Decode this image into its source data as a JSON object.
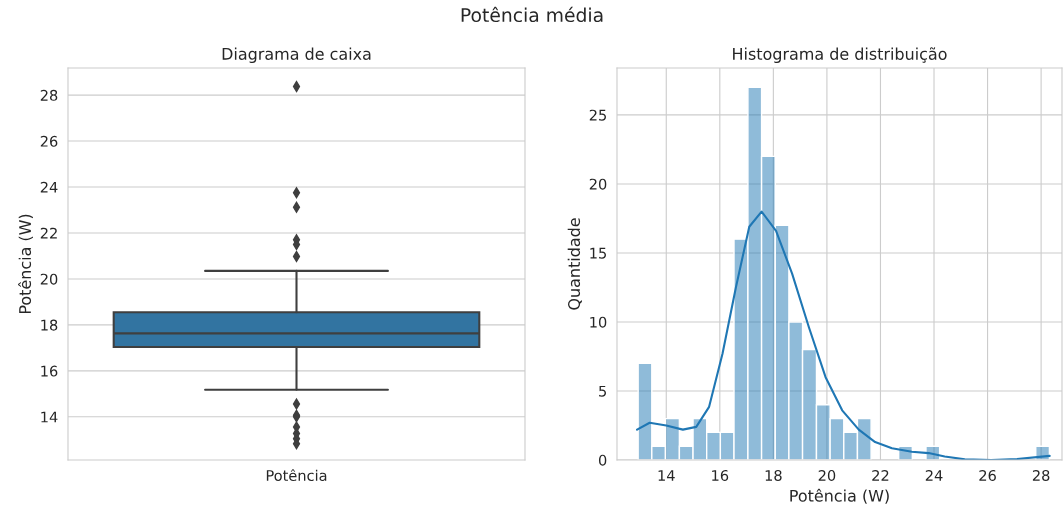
{
  "chart_data": [
    {
      "type": "box",
      "title": "Diagrama de caixa",
      "ylabel": "Potência (W)",
      "annotations": [
        "Potência média"
      ],
      "categories": [
        "Potência"
      ],
      "color": "#3274a1",
      "boxes": [
        {
          "low": 15.18,
          "q1": 17.04,
          "median": 17.63,
          "q3": 18.55,
          "high": 20.35,
          "outliers": [
            28.37,
            23.75,
            23.12,
            21.7,
            21.5,
            20.98,
            14.56,
            14.07,
            14.0,
            13.56,
            13.27,
            13.05,
            12.83
          ]
        }
      ],
      "ylim": [
        12.12,
        29.18
      ],
      "yticks": [
        14,
        16,
        18,
        20,
        22,
        24,
        26,
        28
      ],
      "grid": "y"
    },
    {
      "type": "histogram",
      "title": "Histograma de distribuição",
      "xlabel": "Potência (W)",
      "ylabel": "Quantidade",
      "color": "#1f77b4",
      "bins": [
        12.95,
        13.46,
        13.97,
        14.49,
        15.0,
        15.51,
        16.02,
        16.53,
        17.05,
        17.56,
        18.07,
        18.58,
        19.09,
        19.61,
        20.12,
        20.63,
        21.14,
        21.65,
        22.17,
        22.68,
        23.19,
        23.7,
        24.21,
        24.73,
        25.24,
        25.75,
        26.26,
        26.77,
        27.29,
        27.8,
        28.31
      ],
      "values": [
        7,
        1,
        3,
        1,
        3,
        2,
        2,
        16,
        27,
        22,
        17,
        10,
        8,
        4,
        3,
        2,
        3,
        0,
        0,
        1,
        0,
        1,
        0,
        0,
        0,
        0,
        0,
        0,
        0,
        1
      ],
      "series": [
        {
          "type": "line",
          "color": "#1f77b4",
          "x": [
            12.91,
            13.38,
            14.0,
            14.62,
            15.12,
            15.6,
            16.1,
            16.6,
            17.1,
            17.56,
            18.1,
            18.7,
            19.33,
            19.95,
            20.57,
            21.19,
            21.8,
            22.43,
            23.17,
            23.8,
            24.4,
            25.15,
            26.14,
            27.1,
            28.32
          ],
          "values": [
            2.2,
            2.7,
            2.5,
            2.2,
            2.4,
            3.85,
            7.7,
            12.5,
            16.9,
            18.0,
            16.6,
            13.5,
            9.6,
            6.0,
            3.6,
            2.2,
            1.3,
            0.85,
            0.6,
            0.5,
            0.25,
            0.05,
            0.0,
            0.07,
            0.3
          ]
        }
      ],
      "xlim": [
        12.16,
        28.78
      ],
      "xticks": [
        14,
        16,
        18,
        20,
        22,
        24,
        26,
        28
      ],
      "ylim": [
        0,
        28.4
      ],
      "yticks": [
        0,
        5,
        10,
        15,
        20,
        25
      ],
      "grid": true
    }
  ]
}
